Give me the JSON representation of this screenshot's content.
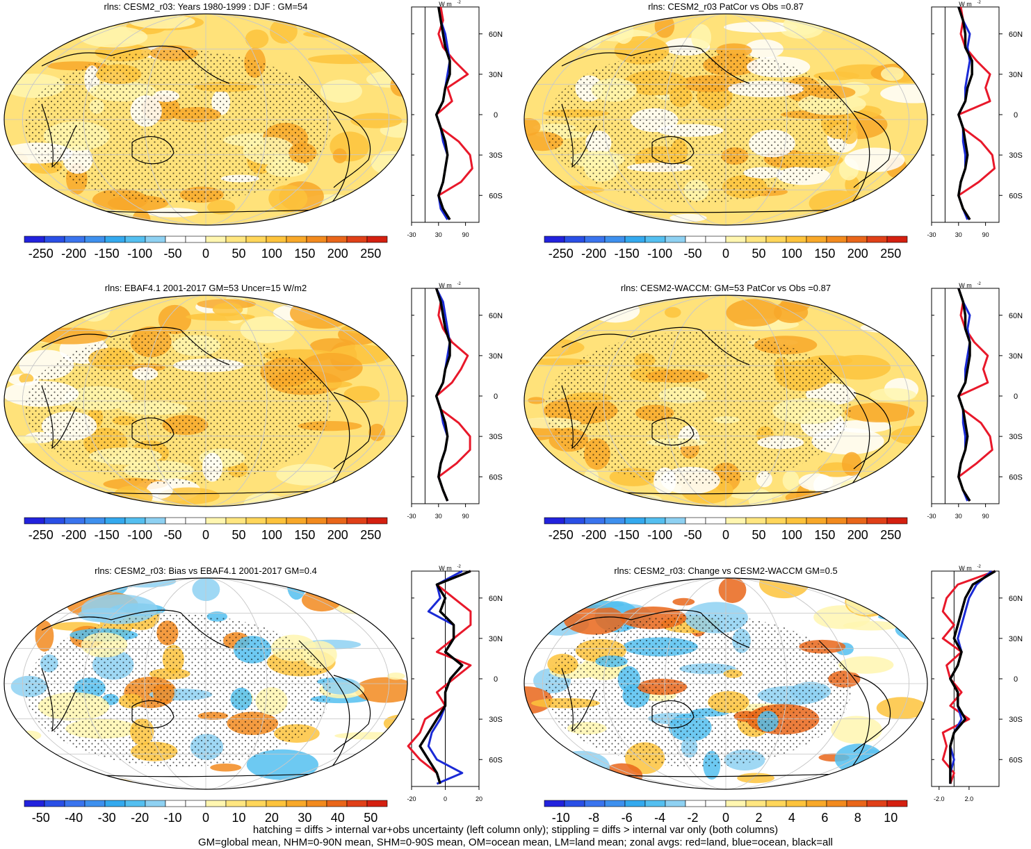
{
  "panels": [
    {
      "title": "rlns: CESM2_r03: Years 1980-1999 : DJF : GM=54",
      "kind": "abs",
      "colorbar": [
        "-250",
        "-200",
        "-150",
        "-100",
        "-50",
        "0",
        "50",
        "100",
        "150",
        "200",
        "250"
      ],
      "zonal_ticks": [
        "-30",
        "30",
        "90"
      ],
      "zonal_range": [
        -30,
        120
      ],
      "zero_line_x": 0
    },
    {
      "title": "rlns: CESM2_r03 PatCor vs Obs =0.87",
      "kind": "abs",
      "colorbar": [
        "-250",
        "-200",
        "-150",
        "-100",
        "-50",
        "0",
        "50",
        "100",
        "150",
        "200",
        "250"
      ],
      "zonal_ticks": [
        "-30",
        "30",
        "90"
      ],
      "zonal_range": [
        -30,
        120
      ],
      "zero_line_x": 0
    },
    {
      "title": "rlns: EBAF4.1 2001-2017 GM=53 Uncer=15 W/m2",
      "kind": "abs",
      "colorbar": [
        "-250",
        "-200",
        "-150",
        "-100",
        "-50",
        "0",
        "50",
        "100",
        "150",
        "200",
        "250"
      ],
      "zonal_ticks": [
        "-30",
        "30",
        "90"
      ],
      "zonal_range": [
        -30,
        120
      ],
      "zero_line_x": 0
    },
    {
      "title": "rlns: CESM2-WACCM: GM=53 PatCor vs Obs =0.87",
      "kind": "abs",
      "colorbar": [
        "-250",
        "-200",
        "-150",
        "-100",
        "-50",
        "0",
        "50",
        "100",
        "150",
        "200",
        "250"
      ],
      "zonal_ticks": [
        "-30",
        "30",
        "90"
      ],
      "zonal_range": [
        -30,
        120
      ],
      "zero_line_x": 0
    },
    {
      "title": "rlns: CESM2_r03: Bias vs EBAF4.1 2001-2017 GM=0.4",
      "kind": "bias",
      "colorbar": [
        "-50",
        "-40",
        "-30",
        "-20",
        "-10",
        "0",
        "10",
        "20",
        "30",
        "40",
        "50"
      ],
      "zonal_ticks": [
        "-20",
        "0",
        "20"
      ],
      "zonal_range": [
        -20,
        20
      ],
      "zero_line_x": 0
    },
    {
      "title": "rlns: CESM2_r03: Change vs CESM2-WACCM GM=0.5",
      "kind": "change",
      "colorbar": [
        "-10",
        "-8",
        "-6",
        "-4",
        "-2",
        "0",
        "2",
        "4",
        "6",
        "8",
        "10"
      ],
      "zonal_ticks": [
        "-2.0",
        "2.0"
      ],
      "zonal_range": [
        -3,
        6
      ],
      "zero_line_x": 0
    }
  ],
  "zonal_unit": "W m",
  "zonal_unit_sup": "-2",
  "lat_labels": [
    "60N",
    "30N",
    "0",
    "30S",
    "60S"
  ],
  "footer": {
    "line1": "hatching = diffs > internal var+obs uncertainty (left column only); stippling = diffs > internal var only (both columns)",
    "line2": "GM=global mean, NHM=0-90N mean, SHM=0-90S mean, OM=ocean mean, LM=land mean; zonal avgs: red=land, blue=ocean, black=all"
  },
  "colors": {
    "scale": [
      "#2222dd",
      "#2a4fe6",
      "#3a74ee",
      "#3e90ee",
      "#34a9ee",
      "#54bff0",
      "#8ed1f2",
      "#ffffff",
      "#ffffff",
      "#fff6b0",
      "#ffe680",
      "#ffd65a",
      "#fdc33c",
      "#f8a829",
      "#f28a1e",
      "#e9661a",
      "#e04018",
      "#d42010"
    ],
    "land": "#e8182a",
    "ocean": "#1a2ad6",
    "all": "#000000"
  },
  "chart_data": [
    {
      "type": "map",
      "title": "rlns: CESM2_r03: Years 1980-1999 : DJF : GM=54",
      "zonal": {
        "lat": [
          80,
          70,
          60,
          50,
          40,
          30,
          20,
          10,
          0,
          -10,
          -20,
          -30,
          -40,
          -50,
          -60,
          -70,
          -78
        ],
        "land": [
          35,
          40,
          30,
          40,
          65,
          95,
          50,
          60,
          25,
          35,
          75,
          100,
          105,
          80,
          30,
          40,
          55
        ],
        "ocean": [
          30,
          35,
          45,
          50,
          55,
          50,
          45,
          40,
          25,
          35,
          40,
          50,
          45,
          40,
          30,
          35,
          50
        ],
        "all": [
          30,
          35,
          40,
          45,
          55,
          55,
          45,
          40,
          25,
          35,
          45,
          50,
          45,
          40,
          30,
          40,
          55
        ]
      }
    },
    {
      "type": "map",
      "title": "rlns: CESM2_r03 PatCor vs Obs =0.87",
      "zonal": {
        "lat": [
          80,
          70,
          60,
          50,
          40,
          30,
          20,
          10,
          0,
          -10,
          -20,
          -30,
          -40,
          -50,
          -60,
          -70,
          -78
        ],
        "land": [
          35,
          40,
          35,
          45,
          70,
          100,
          90,
          100,
          30,
          40,
          80,
          105,
          110,
          75,
          30,
          40,
          55
        ],
        "ocean": [
          30,
          40,
          55,
          50,
          55,
          50,
          45,
          45,
          30,
          40,
          40,
          45,
          45,
          35,
          30,
          40,
          50
        ],
        "all": [
          30,
          40,
          45,
          45,
          60,
          60,
          50,
          45,
          30,
          40,
          45,
          50,
          45,
          35,
          30,
          40,
          55
        ]
      }
    },
    {
      "type": "map",
      "title": "rlns: EBAF4.1 2001-2017 GM=53 Uncer=15 W/m2",
      "zonal": {
        "lat": [
          80,
          70,
          60,
          50,
          40,
          30,
          20,
          10,
          0,
          -10,
          -20,
          -30,
          -40,
          -50,
          -60,
          -70,
          -78
        ],
        "land": [
          25,
          35,
          30,
          40,
          60,
          95,
          80,
          60,
          25,
          35,
          75,
          100,
          100,
          70,
          30,
          40,
          50
        ],
        "ocean": [
          25,
          40,
          45,
          50,
          55,
          50,
          45,
          40,
          25,
          35,
          40,
          50,
          45,
          35,
          30,
          40,
          50
        ],
        "all": [
          25,
          35,
          40,
          45,
          55,
          55,
          45,
          40,
          25,
          35,
          45,
          50,
          45,
          35,
          30,
          40,
          50
        ]
      }
    },
    {
      "type": "map",
      "title": "rlns: CESM2-WACCM: GM=53 PatCor vs Obs =0.87",
      "zonal": {
        "lat": [
          80,
          70,
          60,
          50,
          40,
          30,
          20,
          10,
          0,
          -10,
          -20,
          -30,
          -40,
          -50,
          -60,
          -70,
          -78
        ],
        "land": [
          30,
          40,
          35,
          45,
          65,
          95,
          85,
          95,
          30,
          40,
          80,
          100,
          105,
          70,
          30,
          40,
          55
        ],
        "ocean": [
          30,
          40,
          55,
          50,
          55,
          50,
          45,
          45,
          30,
          40,
          40,
          45,
          45,
          35,
          30,
          40,
          50
        ],
        "all": [
          30,
          40,
          45,
          45,
          55,
          55,
          50,
          45,
          30,
          40,
          45,
          50,
          45,
          35,
          30,
          40,
          55
        ]
      }
    },
    {
      "type": "map",
      "title": "rlns: CESM2_r03: Bias vs EBAF4.1 2001-2017 GM=0.4",
      "zonal": {
        "lat": [
          80,
          70,
          60,
          50,
          40,
          30,
          20,
          10,
          0,
          -10,
          -20,
          -30,
          -40,
          -50,
          -60,
          -70,
          -78
        ],
        "land": [
          15,
          -5,
          5,
          15,
          15,
          5,
          -5,
          15,
          5,
          -5,
          0,
          -12,
          -15,
          -22,
          -15,
          -5,
          -3
        ],
        "ocean": [
          10,
          -5,
          -3,
          -10,
          5,
          5,
          0,
          10,
          3,
          0,
          0,
          -3,
          -8,
          -10,
          -5,
          10,
          -5
        ],
        "all": [
          15,
          -5,
          0,
          -3,
          5,
          5,
          0,
          10,
          3,
          0,
          0,
          -5,
          -10,
          -15,
          -10,
          -5,
          -3
        ]
      }
    },
    {
      "type": "map",
      "title": "rlns: CESM2_r03: Change vs CESM2-WACCM GM=0.5",
      "zonal": {
        "lat": [
          80,
          70,
          60,
          50,
          40,
          30,
          20,
          10,
          0,
          -10,
          -20,
          -30,
          -40,
          -50,
          -60,
          -70,
          -78
        ],
        "land": [
          5.5,
          0.5,
          -1,
          -1.5,
          0,
          -1.5,
          1,
          -1,
          -0.5,
          1,
          -0.5,
          2,
          -1.5,
          -1,
          -1.5,
          0,
          -0.5
        ],
        "ocean": [
          5,
          3,
          2,
          1.5,
          1,
          0.5,
          1,
          0.5,
          -0.5,
          0.5,
          0.5,
          1,
          0,
          -0.5,
          0,
          -0.5,
          -0.5
        ],
        "all": [
          5.5,
          2.5,
          1.5,
          1,
          0.5,
          0,
          1,
          0.5,
          -0.5,
          0.5,
          0.5,
          1.5,
          0,
          -0.5,
          -0.5,
          -0.5,
          -0.5
        ]
      }
    }
  ]
}
